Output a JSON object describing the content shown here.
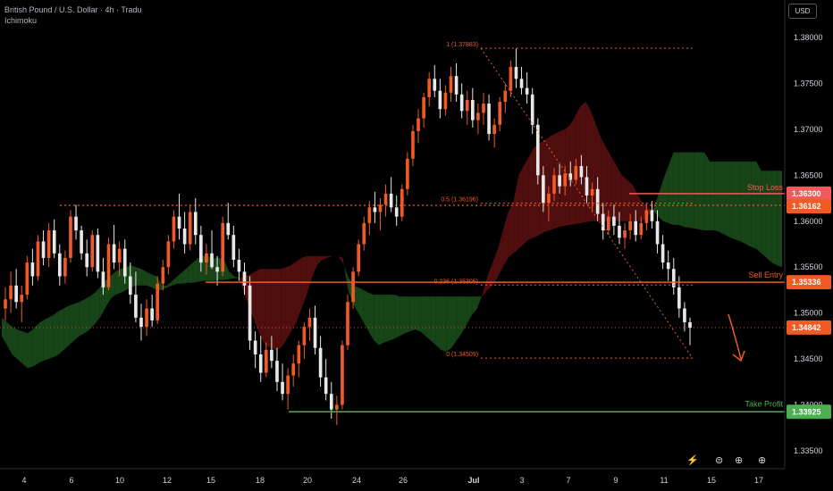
{
  "header": {
    "title": "British Pound / U.S. Dollar · 4h · Tradu",
    "indicator": "Ichimoku"
  },
  "currency_button": "USD",
  "colors": {
    "bull": "#f05a24",
    "bear": "#e8e8e8",
    "cloud_bull": "#1b4d1b",
    "cloud_bear": "#5a1010",
    "stop": "#f05a5a",
    "entry": "#f05a24",
    "tp": "#4caf50",
    "fib": "#f05a24",
    "axis_text": "#d1d4dc"
  },
  "chart_data": {
    "type": "candlestick",
    "title": "British Pound / U.S. Dollar · 4h · Tradu",
    "ylim": [
      1.33,
      1.3825
    ],
    "y_ticks": [
      "1.38000",
      "1.37500",
      "1.37000",
      "1.36500",
      "1.36000",
      "1.35500",
      "1.35000",
      "1.34500",
      "1.34000",
      "1.33500"
    ],
    "x_ticks": [
      "4",
      "6",
      "10",
      "12",
      "15",
      "18",
      "20",
      "24",
      "26",
      "Jul",
      "3",
      "7",
      "9",
      "11",
      "15",
      "17"
    ],
    "levels": [
      {
        "name": "Stop Loss",
        "value": 1.363,
        "label": "1.36300"
      },
      {
        "name": "Sell Entry",
        "value": 1.35336,
        "label": "1.35336"
      },
      {
        "name": "Take Profit",
        "value": 1.33925,
        "label": "1.33925"
      }
    ],
    "price_labels": [
      {
        "value": 1.36162,
        "label": "1.36162"
      },
      {
        "value": 1.34842,
        "label": "1.34842"
      }
    ],
    "fib_levels": [
      {
        "label": "1 (1.37883)",
        "value": 1.37883
      },
      {
        "label": "0.5 (1.36196)",
        "value": 1.36196
      },
      {
        "label": "0.236 (1.35305)",
        "value": 1.35305
      },
      {
        "label": "0 (1.34509)",
        "value": 1.34509
      }
    ],
    "ohlc": [
      [
        1.3505,
        1.3528,
        1.3492,
        1.3515
      ],
      [
        1.3515,
        1.3545,
        1.35,
        1.353
      ],
      [
        1.353,
        1.3548,
        1.3505,
        1.3512
      ],
      [
        1.3512,
        1.353,
        1.349,
        1.352
      ],
      [
        1.352,
        1.3562,
        1.3515,
        1.3555
      ],
      [
        1.3555,
        1.357,
        1.353,
        1.354
      ],
      [
        1.354,
        1.3585,
        1.3535,
        1.3578
      ],
      [
        1.3578,
        1.359,
        1.3552,
        1.356
      ],
      [
        1.356,
        1.3598,
        1.355,
        1.359
      ],
      [
        1.359,
        1.3602,
        1.356,
        1.3565
      ],
      [
        1.3565,
        1.3575,
        1.353,
        1.354
      ],
      [
        1.354,
        1.3568,
        1.3532,
        1.356
      ],
      [
        1.356,
        1.3612,
        1.3555,
        1.3605
      ],
      [
        1.3605,
        1.3618,
        1.358,
        1.359
      ],
      [
        1.359,
        1.3595,
        1.3558,
        1.3565
      ],
      [
        1.3565,
        1.358,
        1.354,
        1.355
      ],
      [
        1.355,
        1.359,
        1.3545,
        1.3585
      ],
      [
        1.3585,
        1.3592,
        1.3538,
        1.3545
      ],
      [
        1.3545,
        1.356,
        1.352,
        1.3528
      ],
      [
        1.3528,
        1.3582,
        1.3525,
        1.3575
      ],
      [
        1.3575,
        1.3596,
        1.3548,
        1.3555
      ],
      [
        1.3555,
        1.3578,
        1.354,
        1.357
      ],
      [
        1.357,
        1.358,
        1.3532,
        1.354
      ],
      [
        1.354,
        1.3555,
        1.351,
        1.352
      ],
      [
        1.352,
        1.3545,
        1.349,
        1.3495
      ],
      [
        1.3495,
        1.351,
        1.347,
        1.3485
      ],
      [
        1.3485,
        1.3515,
        1.3475,
        1.3505
      ],
      [
        1.3505,
        1.352,
        1.3485,
        1.3492
      ],
      [
        1.3492,
        1.354,
        1.3488,
        1.3532
      ],
      [
        1.3532,
        1.3558,
        1.3525,
        1.355
      ],
      [
        1.355,
        1.3585,
        1.3542,
        1.3578
      ],
      [
        1.3578,
        1.3612,
        1.357,
        1.3605
      ],
      [
        1.3605,
        1.363,
        1.358,
        1.3592
      ],
      [
        1.3592,
        1.361,
        1.3565,
        1.3575
      ],
      [
        1.3575,
        1.3618,
        1.3568,
        1.361
      ],
      [
        1.361,
        1.3625,
        1.3575,
        1.3585
      ],
      [
        1.3585,
        1.3595,
        1.3545,
        1.3555
      ],
      [
        1.3555,
        1.3575,
        1.3542,
        1.3565
      ],
      [
        1.3565,
        1.359,
        1.3548,
        1.355
      ],
      [
        1.355,
        1.3562,
        1.353,
        1.3545
      ],
      [
        1.3545,
        1.3605,
        1.354,
        1.3598
      ],
      [
        1.3598,
        1.362,
        1.358,
        1.3585
      ],
      [
        1.3585,
        1.3595,
        1.355,
        1.3558
      ],
      [
        1.3558,
        1.357,
        1.3535,
        1.3545
      ],
      [
        1.3545,
        1.3555,
        1.352,
        1.353
      ],
      [
        1.353,
        1.354,
        1.346,
        1.347
      ],
      [
        1.347,
        1.348,
        1.344,
        1.3455
      ],
      [
        1.3455,
        1.3475,
        1.3425,
        1.3435
      ],
      [
        1.3435,
        1.3468,
        1.343,
        1.346
      ],
      [
        1.346,
        1.3475,
        1.344,
        1.3448
      ],
      [
        1.3448,
        1.3462,
        1.3415,
        1.3425
      ],
      [
        1.3425,
        1.3445,
        1.3405,
        1.3412
      ],
      [
        1.3412,
        1.344,
        1.3395,
        1.3432
      ],
      [
        1.3432,
        1.3455,
        1.342,
        1.3445
      ],
      [
        1.3445,
        1.347,
        1.343,
        1.3465
      ],
      [
        1.3465,
        1.349,
        1.345,
        1.3485
      ],
      [
        1.3485,
        1.3505,
        1.347,
        1.3495
      ],
      [
        1.3495,
        1.3508,
        1.3455,
        1.3462
      ],
      [
        1.3462,
        1.3475,
        1.342,
        1.343
      ],
      [
        1.343,
        1.345,
        1.3405,
        1.3412
      ],
      [
        1.3412,
        1.3425,
        1.3385,
        1.3395
      ],
      [
        1.3395,
        1.341,
        1.3378,
        1.34
      ],
      [
        1.34,
        1.347,
        1.3395,
        1.3465
      ],
      [
        1.3465,
        1.352,
        1.346,
        1.3512
      ],
      [
        1.3512,
        1.355,
        1.3505,
        1.3545
      ],
      [
        1.3545,
        1.358,
        1.354,
        1.3575
      ],
      [
        1.3575,
        1.3605,
        1.3568,
        1.3598
      ],
      [
        1.3598,
        1.3622,
        1.3585,
        1.3615
      ],
      [
        1.3615,
        1.3632,
        1.3598,
        1.361
      ],
      [
        1.361,
        1.3625,
        1.359,
        1.3618
      ],
      [
        1.3618,
        1.364,
        1.3605,
        1.363
      ],
      [
        1.363,
        1.3648,
        1.361,
        1.3615
      ],
      [
        1.3615,
        1.3628,
        1.3595,
        1.3605
      ],
      [
        1.3605,
        1.364,
        1.36,
        1.3635
      ],
      [
        1.3635,
        1.3675,
        1.3628,
        1.3668
      ],
      [
        1.3668,
        1.3705,
        1.366,
        1.3698
      ],
      [
        1.3698,
        1.3722,
        1.3685,
        1.3712
      ],
      [
        1.3712,
        1.374,
        1.3702,
        1.3735
      ],
      [
        1.3735,
        1.3762,
        1.3725,
        1.3755
      ],
      [
        1.3755,
        1.377,
        1.3735,
        1.3742
      ],
      [
        1.3742,
        1.3755,
        1.3712,
        1.3722
      ],
      [
        1.3722,
        1.3748,
        1.3715,
        1.374
      ],
      [
        1.374,
        1.3768,
        1.373,
        1.3758
      ],
      [
        1.3758,
        1.3772,
        1.373,
        1.3738
      ],
      [
        1.3738,
        1.375,
        1.3712,
        1.372
      ],
      [
        1.372,
        1.3742,
        1.3705,
        1.3732
      ],
      [
        1.3732,
        1.3745,
        1.3702,
        1.371
      ],
      [
        1.371,
        1.3728,
        1.3695,
        1.3718
      ],
      [
        1.3718,
        1.374,
        1.3705,
        1.3728
      ],
      [
        1.3728,
        1.3738,
        1.3688,
        1.3695
      ],
      [
        1.3695,
        1.3712,
        1.368,
        1.3705
      ],
      [
        1.3705,
        1.3735,
        1.3698,
        1.373
      ],
      [
        1.373,
        1.375,
        1.3718,
        1.3742
      ],
      [
        1.3742,
        1.3775,
        1.3735,
        1.3768
      ],
      [
        1.3768,
        1.3788,
        1.3745,
        1.3755
      ],
      [
        1.3755,
        1.3768,
        1.3738,
        1.3745
      ],
      [
        1.3745,
        1.3762,
        1.3728,
        1.3738
      ],
      [
        1.3738,
        1.3745,
        1.3695,
        1.3705
      ],
      [
        1.3705,
        1.3712,
        1.364,
        1.365
      ],
      [
        1.365,
        1.366,
        1.361,
        1.362
      ],
      [
        1.362,
        1.3638,
        1.36,
        1.363
      ],
      [
        1.363,
        1.3658,
        1.3622,
        1.365
      ],
      [
        1.365,
        1.3662,
        1.363,
        1.3638
      ],
      [
        1.3638,
        1.366,
        1.3628,
        1.3652
      ],
      [
        1.3652,
        1.3665,
        1.3638,
        1.3645
      ],
      [
        1.3645,
        1.3668,
        1.364,
        1.366
      ],
      [
        1.366,
        1.3672,
        1.364,
        1.3648
      ],
      [
        1.3648,
        1.366,
        1.362,
        1.3628
      ],
      [
        1.3628,
        1.3642,
        1.361,
        1.3635
      ],
      [
        1.3635,
        1.3648,
        1.36,
        1.3608
      ],
      [
        1.3608,
        1.362,
        1.358,
        1.359
      ],
      [
        1.359,
        1.3612,
        1.3585,
        1.3605
      ],
      [
        1.3605,
        1.3618,
        1.3585,
        1.3595
      ],
      [
        1.3595,
        1.361,
        1.3575,
        1.3582
      ],
      [
        1.3582,
        1.3598,
        1.357,
        1.359
      ],
      [
        1.359,
        1.3608,
        1.358,
        1.36
      ],
      [
        1.36,
        1.3612,
        1.3578,
        1.3585
      ],
      [
        1.3585,
        1.3605,
        1.358,
        1.3598
      ],
      [
        1.3598,
        1.362,
        1.359,
        1.3612
      ],
      [
        1.3612,
        1.3622,
        1.3592,
        1.36
      ],
      [
        1.36,
        1.3612,
        1.3565,
        1.3575
      ],
      [
        1.3575,
        1.3585,
        1.3548,
        1.3555
      ],
      [
        1.3555,
        1.3568,
        1.3535,
        1.3548
      ],
      [
        1.3548,
        1.356,
        1.352,
        1.3528
      ],
      [
        1.3528,
        1.354,
        1.3495,
        1.3505
      ],
      [
        1.3505,
        1.3512,
        1.348,
        1.349
      ],
      [
        1.349,
        1.3495,
        1.3465,
        1.3484
      ]
    ],
    "cloud": [
      [
        1.3495,
        1.3475
      ],
      [
        1.349,
        1.3465
      ],
      [
        1.3485,
        1.3455
      ],
      [
        1.3482,
        1.345
      ],
      [
        1.348,
        1.3445
      ],
      [
        1.3478,
        1.344
      ],
      [
        1.3482,
        1.3442
      ],
      [
        1.3488,
        1.3445
      ],
      [
        1.3492,
        1.3448
      ],
      [
        1.3495,
        1.345
      ],
      [
        1.3498,
        1.3452
      ],
      [
        1.3502,
        1.3455
      ],
      [
        1.3505,
        1.346
      ],
      [
        1.3508,
        1.3465
      ],
      [
        1.351,
        1.347
      ],
      [
        1.3512,
        1.3475
      ],
      [
        1.3515,
        1.3478
      ],
      [
        1.3518,
        1.3482
      ],
      [
        1.3522,
        1.3488
      ],
      [
        1.3528,
        1.3495
      ],
      [
        1.3535,
        1.3505
      ],
      [
        1.354,
        1.3515
      ],
      [
        1.3545,
        1.352
      ],
      [
        1.3548,
        1.3522
      ],
      [
        1.355,
        1.3525
      ],
      [
        1.3552,
        1.3528
      ],
      [
        1.355,
        1.353
      ],
      [
        1.3548,
        1.353
      ],
      [
        1.3545,
        1.353
      ],
      [
        1.3542,
        1.3528
      ],
      [
        1.354,
        1.3525
      ],
      [
        1.353,
        1.3525
      ],
      [
        1.353,
        1.3528
      ],
      [
        1.3535,
        1.353
      ],
      [
        1.354,
        1.3532
      ],
      [
        1.3545,
        1.3532
      ],
      [
        1.355,
        1.3533
      ],
      [
        1.3555,
        1.3533
      ],
      [
        1.356,
        1.3534
      ],
      [
        1.3562,
        1.3535
      ],
      [
        1.3562,
        1.3535
      ],
      [
        1.356,
        1.3535
      ],
      [
        1.356,
        1.3536
      ],
      [
        1.3558,
        1.3536
      ],
      [
        1.3545,
        1.3537
      ],
      [
        1.354,
        1.3538
      ],
      [
        1.3538,
        1.3538
      ],
      [
        1.352,
        1.354
      ],
      [
        1.3505,
        1.3542
      ],
      [
        1.349,
        1.3545
      ],
      [
        1.3475,
        1.3548
      ],
      [
        1.3465,
        1.3548
      ],
      [
        1.3462,
        1.3548
      ],
      [
        1.346,
        1.3548
      ],
      [
        1.3462,
        1.3548
      ],
      [
        1.347,
        1.355
      ],
      [
        1.348,
        1.3552
      ],
      [
        1.349,
        1.3556
      ],
      [
        1.3505,
        1.356
      ],
      [
        1.352,
        1.3562
      ],
      [
        1.3538,
        1.3562
      ],
      [
        1.3552,
        1.3562
      ],
      [
        1.3558,
        1.3562
      ],
      [
        1.356,
        1.3562
      ],
      [
        1.3562,
        1.3562
      ],
      [
        1.3562,
        1.3562
      ],
      [
        1.3555,
        1.356
      ],
      [
        1.354,
        1.3525
      ],
      [
        1.353,
        1.351
      ],
      [
        1.3528,
        1.35
      ],
      [
        1.3525,
        1.349
      ],
      [
        1.3522,
        1.348
      ],
      [
        1.352,
        1.347
      ],
      [
        1.352,
        1.3465
      ],
      [
        1.352,
        1.3468
      ],
      [
        1.352,
        1.347
      ],
      [
        1.352,
        1.3472
      ],
      [
        1.3518,
        1.3475
      ],
      [
        1.3518,
        1.3478
      ],
      [
        1.3518,
        1.348
      ],
      [
        1.3518,
        1.3482
      ],
      [
        1.3518,
        1.348
      ],
      [
        1.3518,
        1.3475
      ],
      [
        1.3518,
        1.347
      ],
      [
        1.3518,
        1.3465
      ],
      [
        1.3518,
        1.346
      ],
      [
        1.3518,
        1.3458
      ],
      [
        1.3518,
        1.3462
      ],
      [
        1.3518,
        1.347
      ],
      [
        1.3518,
        1.3478
      ],
      [
        1.3518,
        1.3488
      ],
      [
        1.3518,
        1.3498
      ],
      [
        1.3518,
        1.3505
      ],
      [
        1.3518,
        1.352
      ],
      [
        1.3525,
        1.354
      ],
      [
        1.353,
        1.3555
      ],
      [
        1.354,
        1.357
      ],
      [
        1.355,
        1.359
      ],
      [
        1.356,
        1.361
      ],
      [
        1.3565,
        1.362
      ],
      [
        1.357,
        1.365
      ],
      [
        1.3575,
        1.366
      ],
      [
        1.358,
        1.367
      ],
      [
        1.3582,
        1.368
      ],
      [
        1.3585,
        1.3685
      ],
      [
        1.3588,
        1.3688
      ],
      [
        1.359,
        1.3692
      ],
      [
        1.3592,
        1.3695
      ],
      [
        1.3594,
        1.3698
      ],
      [
        1.3595,
        1.37
      ],
      [
        1.3596,
        1.3705
      ],
      [
        1.3597,
        1.3715
      ],
      [
        1.3598,
        1.3725
      ],
      [
        1.3599,
        1.373
      ],
      [
        1.36,
        1.372
      ],
      [
        1.36,
        1.3705
      ],
      [
        1.36,
        1.369
      ],
      [
        1.36,
        1.368
      ],
      [
        1.36,
        1.367
      ],
      [
        1.36,
        1.366
      ],
      [
        1.36,
        1.365
      ],
      [
        1.36,
        1.3645
      ],
      [
        1.36,
        1.364
      ],
      [
        1.36,
        1.363
      ],
      [
        1.36,
        1.362
      ],
      [
        1.3605,
        1.3615
      ],
      [
        1.3612,
        1.3612
      ],
      [
        1.3628,
        1.3605
      ],
      [
        1.3645,
        1.36
      ],
      [
        1.366,
        1.3598
      ],
      [
        1.3675,
        1.3596
      ],
      [
        1.3675,
        1.3596
      ],
      [
        1.3675,
        1.3594
      ],
      [
        1.3675,
        1.3593
      ],
      [
        1.3675,
        1.3592
      ],
      [
        1.3675,
        1.3591
      ],
      [
        1.3675,
        1.359
      ],
      [
        1.3665,
        1.359
      ],
      [
        1.3665,
        1.359
      ],
      [
        1.3665,
        1.3588
      ],
      [
        1.3665,
        1.3585
      ],
      [
        1.3665,
        1.3582
      ],
      [
        1.3665,
        1.358
      ],
      [
        1.3665,
        1.3578
      ],
      [
        1.3665,
        1.3575
      ],
      [
        1.3665,
        1.3572
      ],
      [
        1.3665,
        1.357
      ],
      [
        1.3655,
        1.3565
      ],
      [
        1.3655,
        1.356
      ],
      [
        1.3655,
        1.3555
      ],
      [
        1.3655,
        1.3552
      ],
      [
        1.3655,
        1.355
      ]
    ]
  }
}
